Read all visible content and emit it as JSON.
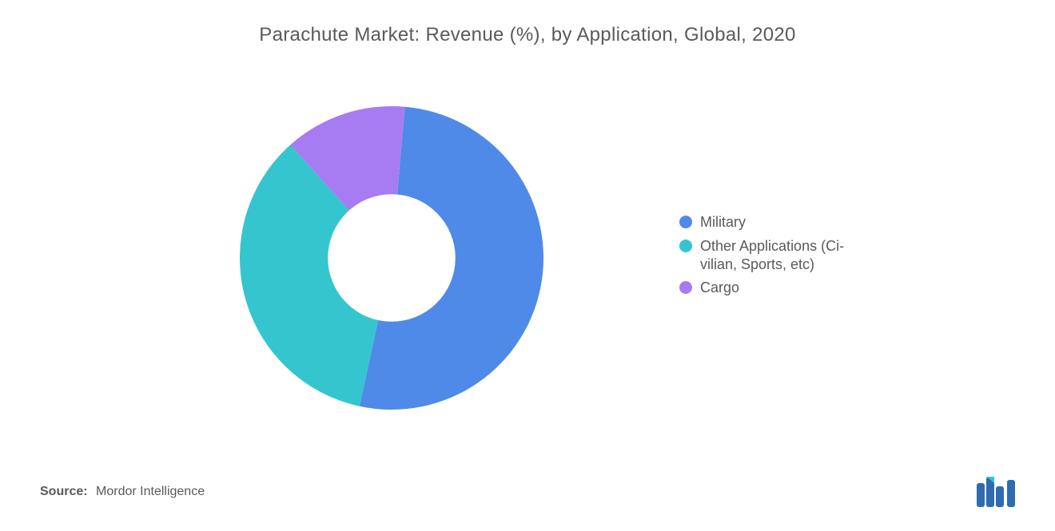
{
  "title": "Parachute Market: Revenue (%), by Application, Global, 2020",
  "chart": {
    "type": "donut",
    "inner_radius_ratio": 0.42,
    "background_color": "#ffffff",
    "title_fontsize": 24,
    "title_color": "#5a5a5a",
    "legend_fontsize": 18,
    "legend_color": "#5a5a5a",
    "slices": [
      {
        "label": "Military",
        "value": 52,
        "color": "#4f8ae8"
      },
      {
        "label": "Other Applications (Ci-\nvilian, Sports, etc)",
        "value": 35,
        "color": "#35c5cf"
      },
      {
        "label": "Cargo",
        "value": 13,
        "color": "#a77cf2"
      }
    ],
    "start_angle_deg": -85
  },
  "source": {
    "label": "Source:",
    "text": "Mordor Intelligence"
  },
  "logo": {
    "bar_color": "#2e6bb0",
    "accent_color": "#35c5cf"
  }
}
